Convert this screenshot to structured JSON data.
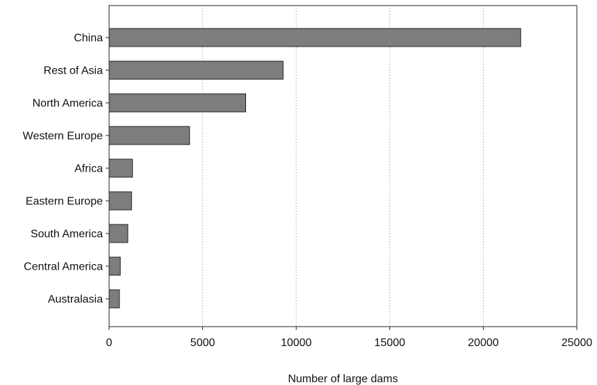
{
  "chart_data": {
    "type": "bar",
    "orientation": "horizontal",
    "categories": [
      "China",
      "Rest of Asia",
      "North America",
      "Western Europe",
      "Africa",
      "Eastern Europe",
      "South America",
      "Central America",
      "Australasia"
    ],
    "values": [
      22000,
      9300,
      7300,
      4300,
      1250,
      1200,
      1000,
      600,
      550
    ],
    "xlabel": "Number of large dams",
    "ylabel": "",
    "xlim": [
      0,
      25000
    ],
    "xticks": [
      0,
      5000,
      10000,
      15000,
      20000,
      25000
    ],
    "xtick_labels": [
      "0",
      "5000",
      "10000",
      "15000",
      "20000",
      "25000"
    ],
    "grid": "vertical dotted",
    "legend": "none",
    "colors": {
      "bar_fill": "#7d7d7d",
      "bar_stroke": "#222222",
      "grid": "#888888",
      "axis": "#222222"
    }
  }
}
